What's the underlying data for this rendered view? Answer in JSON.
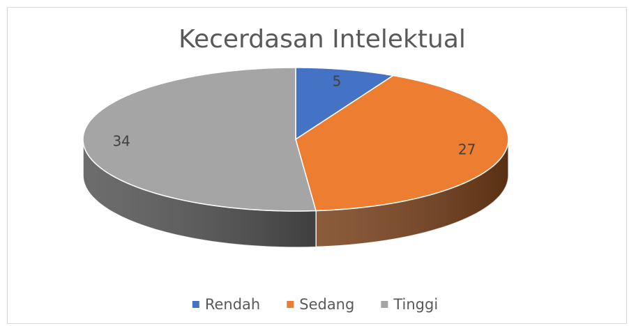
{
  "chart_data": {
    "type": "pie",
    "title": "Kecerdasan Intelektual",
    "categories": [
      "Rendah",
      "Sedang",
      "Tinggi"
    ],
    "values": [
      5,
      27,
      34
    ],
    "colors": [
      "#4472c4",
      "#ed7d31",
      "#a5a5a5"
    ],
    "legend": "bottom"
  }
}
